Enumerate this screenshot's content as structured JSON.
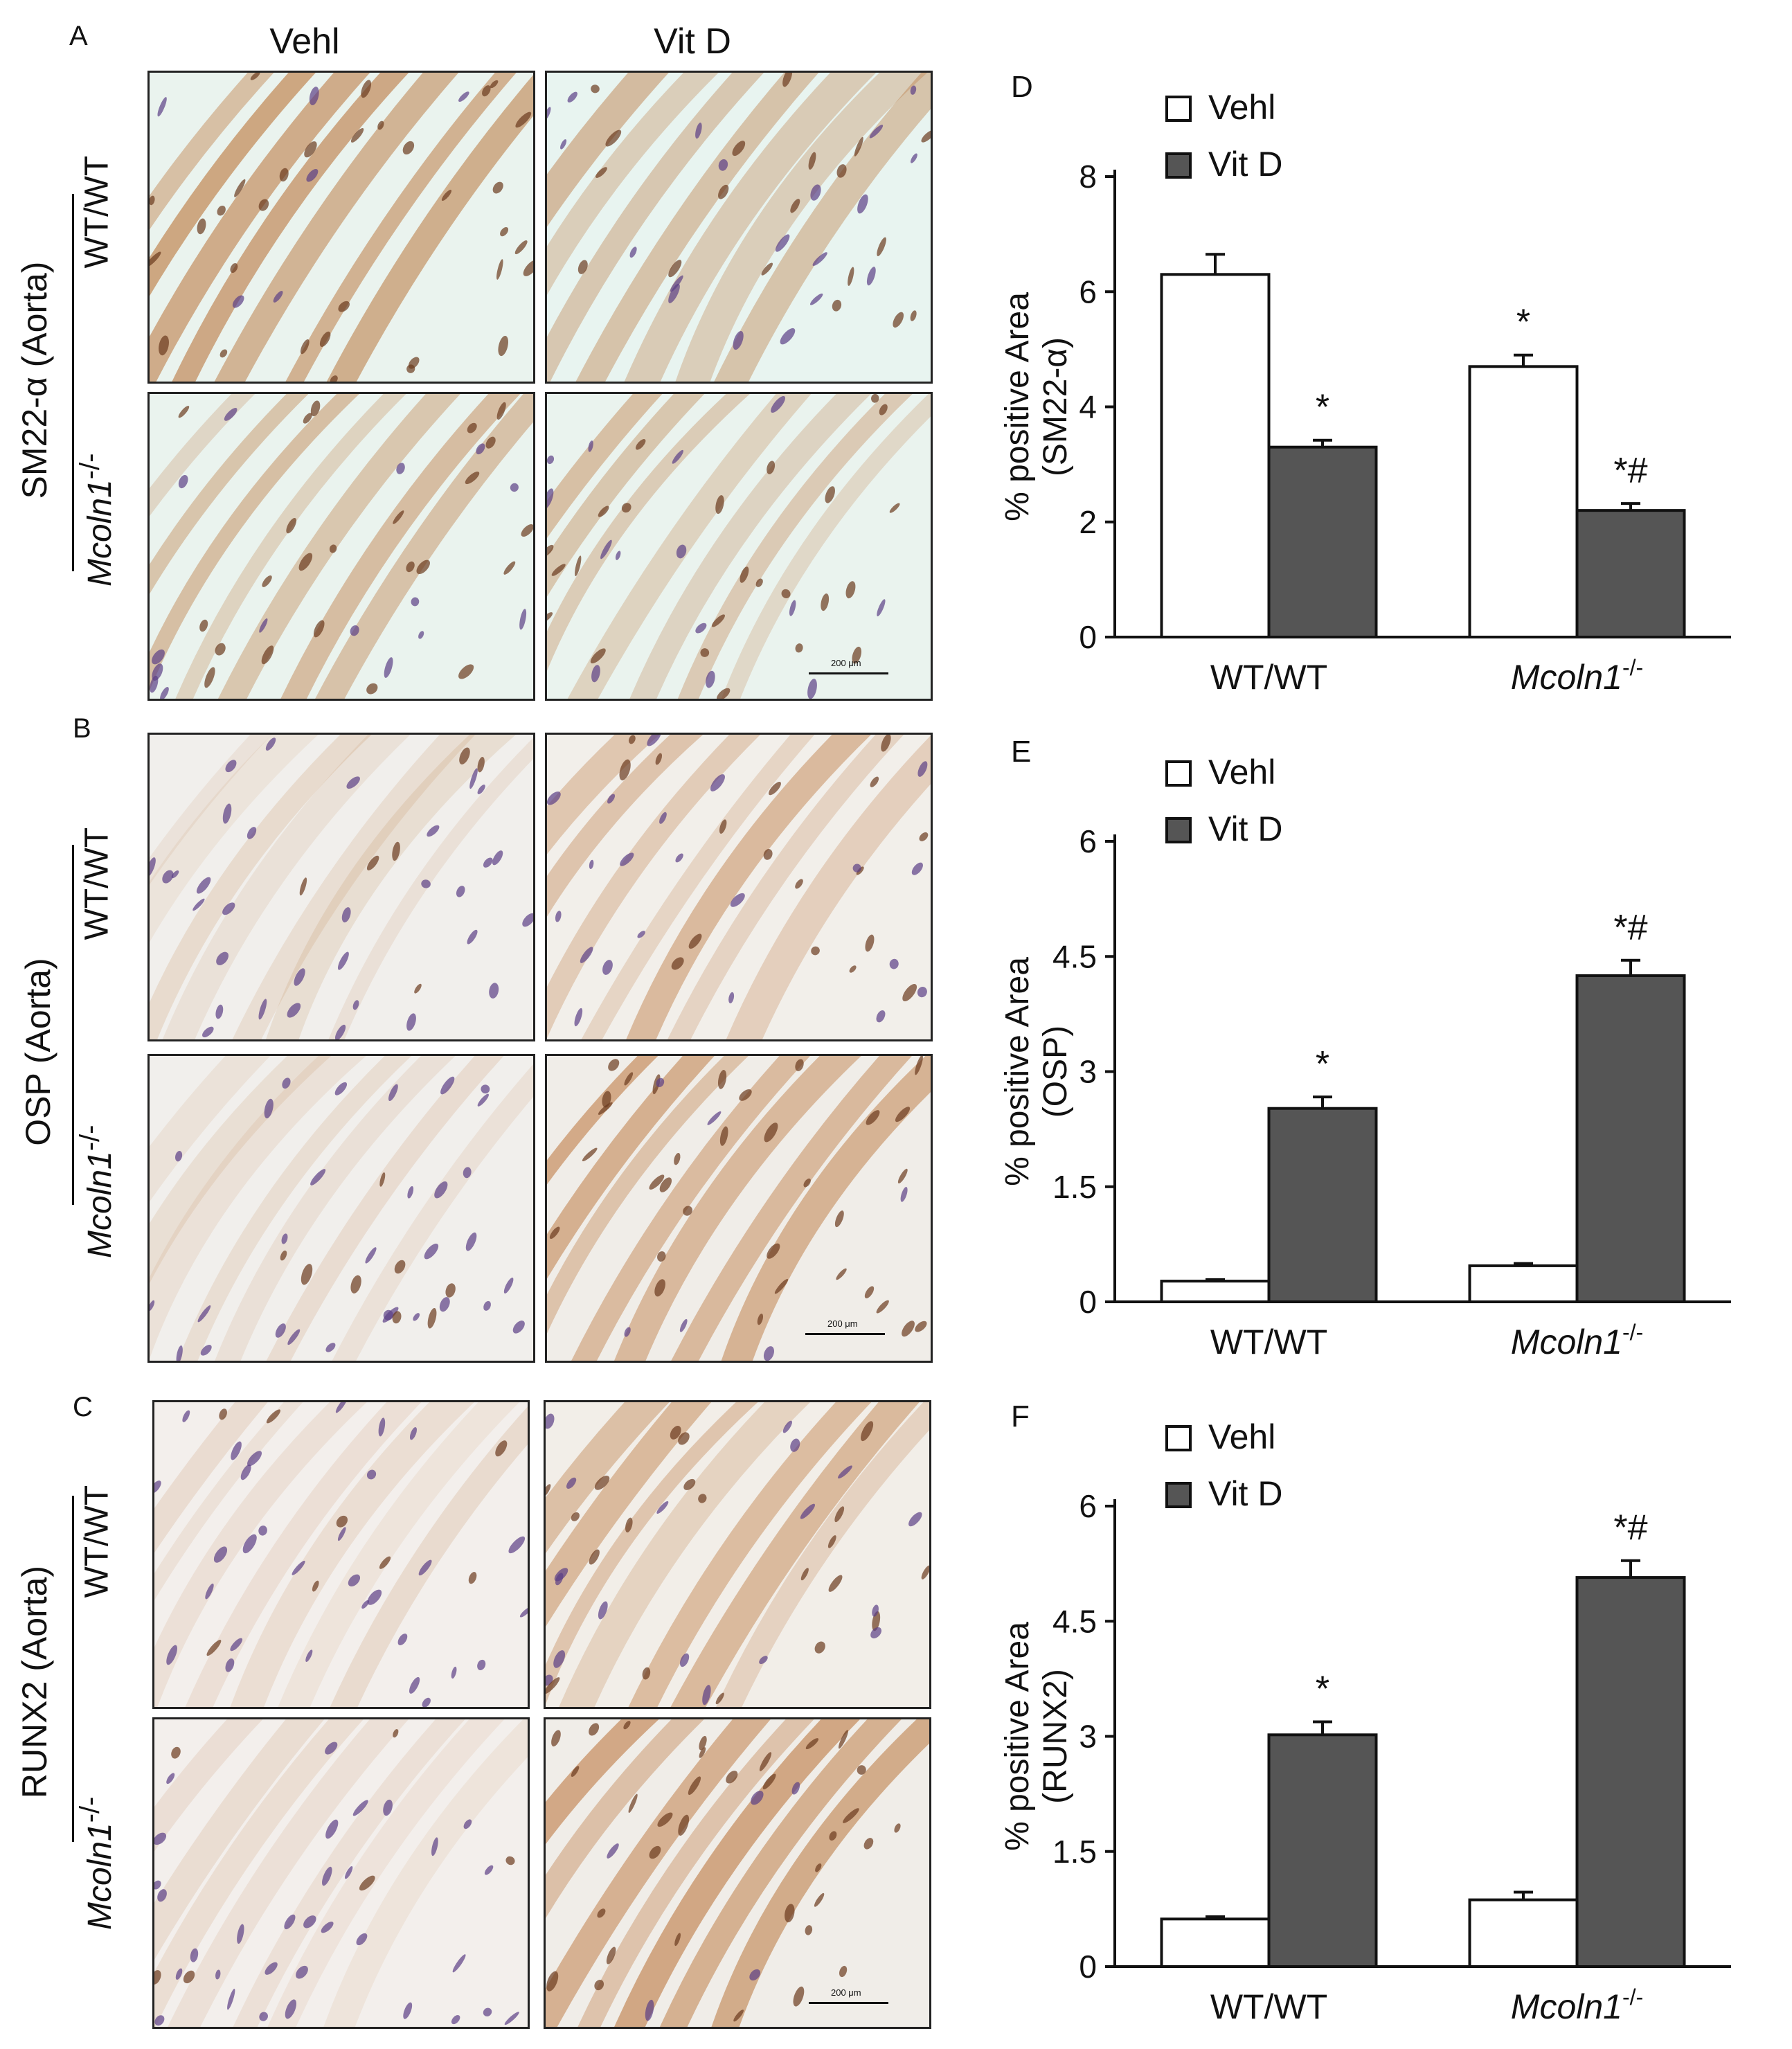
{
  "figure": {
    "panel_letters": [
      "A",
      "B",
      "C",
      "D",
      "E",
      "F"
    ],
    "column_headers": [
      "Vehl",
      "Vit D"
    ],
    "rows": [
      {
        "stain_label": "SM22-α (Aorta)",
        "wt_label": "WT/WT",
        "ko_label": "Mcoln1",
        "ko_sup": "-/-"
      },
      {
        "stain_label": "OSP (Aorta)",
        "wt_label": "WT/WT",
        "ko_label": "Mcoln1",
        "ko_sup": "-/-"
      },
      {
        "stain_label": "RUNX2 (Aorta)",
        "wt_label": "WT/WT",
        "ko_label": "Mcoln1",
        "ko_sup": "-/-"
      }
    ],
    "scale_bar_label": "200 μm",
    "micrograph_colors": {
      "background_pale": "#eaf3ee",
      "brown_stain": "#b5692a",
      "nucleus_purple": "#5b3f86"
    }
  },
  "chart_data": [
    {
      "type": "bar",
      "panel": "D",
      "categories": [
        "WT/WT",
        "Mcoln1-/-"
      ],
      "ylabel": "% positive Area (SM22-α)",
      "ylim": [
        0,
        8
      ],
      "yticks": [
        "0",
        "2",
        "4",
        "6",
        "8"
      ],
      "series": [
        {
          "name": "Vehl",
          "color": "#ffffff",
          "values": [
            6.3,
            4.7
          ],
          "errors": [
            0.35,
            0.2
          ],
          "annotations": [
            "",
            "*"
          ]
        },
        {
          "name": "Vit D",
          "color": "#555555",
          "values": [
            3.3,
            2.2
          ],
          "errors": [
            0.12,
            0.12
          ],
          "annotations": [
            "*",
            "*#"
          ]
        }
      ],
      "legend": "top-left",
      "grid": false
    },
    {
      "type": "bar",
      "panel": "E",
      "categories": [
        "WT/WT",
        "Mcoln1-/-"
      ],
      "ylabel": "% positive Area (OSP)",
      "ylim": [
        0,
        6
      ],
      "yticks": [
        "0",
        "1.5",
        "3",
        "4.5",
        "6"
      ],
      "series": [
        {
          "name": "Vehl",
          "color": "#ffffff",
          "values": [
            0.27,
            0.47
          ],
          "errors": [
            0.02,
            0.03
          ],
          "annotations": [
            "",
            ""
          ]
        },
        {
          "name": "Vit D",
          "color": "#555555",
          "values": [
            2.52,
            4.25
          ],
          "errors": [
            0.15,
            0.2
          ],
          "annotations": [
            "*",
            "*#"
          ]
        }
      ],
      "legend": "top-left",
      "grid": false
    },
    {
      "type": "bar",
      "panel": "F",
      "categories": [
        "WT/WT",
        "Mcoln1-/-"
      ],
      "ylabel": "% positive Area (RUNX2)",
      "ylim": [
        0,
        6
      ],
      "yticks": [
        "0",
        "1.5",
        "3",
        "4.5",
        "6"
      ],
      "series": [
        {
          "name": "Vehl",
          "color": "#ffffff",
          "values": [
            0.62,
            0.87
          ],
          "errors": [
            0.03,
            0.1
          ],
          "annotations": [
            "",
            ""
          ]
        },
        {
          "name": "Vit D",
          "color": "#555555",
          "values": [
            3.02,
            5.07
          ],
          "errors": [
            0.17,
            0.22
          ],
          "annotations": [
            "*",
            "*#"
          ]
        }
      ],
      "legend": "top-left",
      "grid": false
    }
  ]
}
